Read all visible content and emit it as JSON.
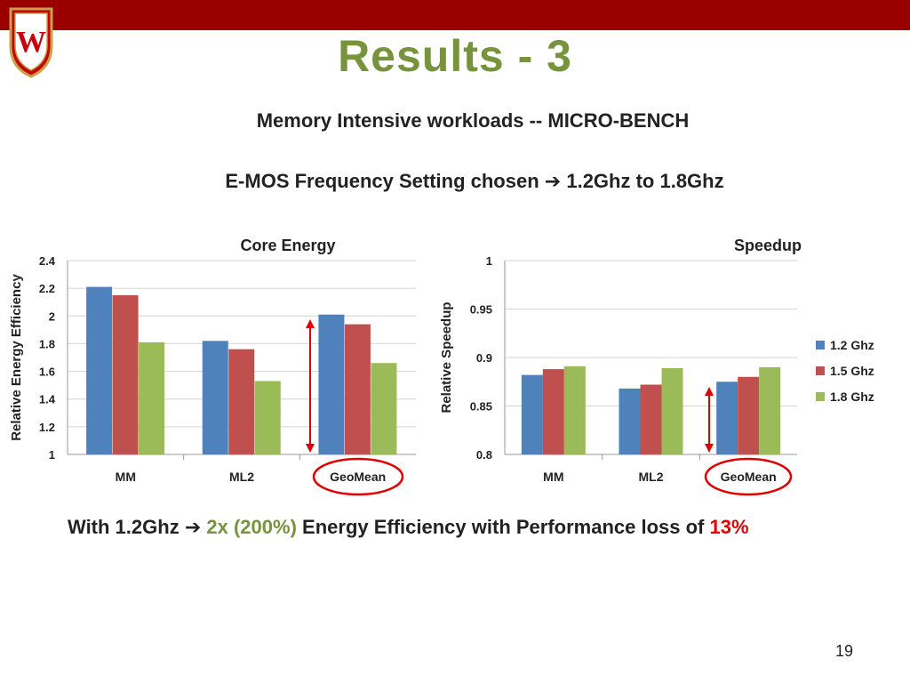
{
  "slide": {
    "title": "Results - 3",
    "subtitle1": "Memory Intensive workloads  -- MICRO-BENCH",
    "subtitle2_left": "E-MOS Frequency Setting chosen",
    "subtitle2_arrow": "➔",
    "subtitle2_right": "1.2Ghz to 1.8Ghz",
    "conclusion": {
      "part1": "With 1.2Ghz",
      "arrow": "➔",
      "highlight_green": "2x (200%)",
      "part2": "Energy Efficiency  with Performance loss of",
      "highlight_red": "13%"
    },
    "page_number": "19",
    "logo_letter": "W",
    "colors": {
      "topbar": "#9b0000",
      "title": "#77933c",
      "highlight_red": "#e00000",
      "annotation": "#e00000"
    }
  },
  "chart_data": [
    {
      "type": "bar",
      "title": "Core Energy",
      "ylabel": "Relative Energy Efficiency",
      "categories": [
        "MM",
        "ML2",
        "GeoMean"
      ],
      "series": [
        {
          "name": "1.2 Ghz",
          "color": "#4f81bd",
          "values": [
            2.21,
            1.82,
            2.01
          ]
        },
        {
          "name": "1.5 Ghz",
          "color": "#c0504d",
          "values": [
            2.15,
            1.76,
            1.94
          ]
        },
        {
          "name": "1.8 Ghz",
          "color": "#9bbb59",
          "values": [
            1.81,
            1.53,
            1.66
          ]
        }
      ],
      "ylim": [
        1,
        2.4
      ],
      "yticks": [
        "1",
        "1.2",
        "1.4",
        "1.6",
        "1.8",
        "2",
        "2.2",
        "2.4"
      ],
      "grid": true,
      "annotations": [
        "red double arrow over GeoMean",
        "red ellipse around GeoMean label"
      ]
    },
    {
      "type": "bar",
      "title": "Speedup",
      "ylabel": "Relative Speedup",
      "categories": [
        "MM",
        "ML2",
        "GeoMean"
      ],
      "series": [
        {
          "name": "1.2 Ghz",
          "color": "#4f81bd",
          "values": [
            0.882,
            0.868,
            0.875
          ]
        },
        {
          "name": "1.5 Ghz",
          "color": "#c0504d",
          "values": [
            0.888,
            0.872,
            0.88
          ]
        },
        {
          "name": "1.8 Ghz",
          "color": "#9bbb59",
          "values": [
            0.891,
            0.889,
            0.89
          ]
        }
      ],
      "ylim": [
        0.8,
        1
      ],
      "yticks": [
        "0.8",
        "0.85",
        "0.9",
        "0.95",
        "1"
      ],
      "grid": true,
      "legend": "right",
      "legend_entries": [
        "1.2 Ghz",
        "1.5 Ghz",
        "1.8 Ghz"
      ],
      "annotations": [
        "red double arrow over GeoMean",
        "red ellipse around GeoMean label"
      ]
    }
  ]
}
